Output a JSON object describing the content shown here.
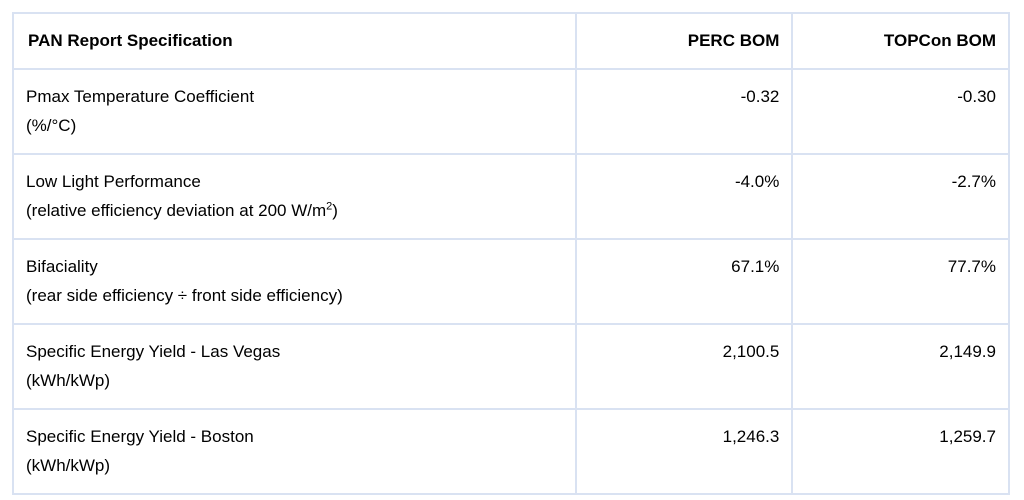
{
  "page": {
    "background_color": "#ffffff",
    "border_color": "#d9e2f2",
    "text_color": "#000000"
  },
  "table": {
    "header": {
      "spec": "PAN Report Specification",
      "perc": "PERC BOM",
      "topcon": "TOPCon BOM"
    },
    "rows": [
      {
        "name": "Pmax Temperature Coefficient",
        "detail_pre": "(%/°C)",
        "detail_sup": "",
        "detail_post": "",
        "perc": "-0.32",
        "topcon": "-0.30"
      },
      {
        "name": "Low Light Performance",
        "detail_pre": "(relative efficiency deviation at 200 W/m",
        "detail_sup": "2",
        "detail_post": ")",
        "perc": "-4.0%",
        "topcon": "-2.7%"
      },
      {
        "name": "Bifaciality",
        "detail_pre": "(rear side efficiency ÷ front side efficiency)",
        "detail_sup": "",
        "detail_post": "",
        "perc": "67.1%",
        "topcon": "77.7%"
      },
      {
        "name": "Specific Energy Yield - Las Vegas",
        "detail_pre": "(kWh/kWp)",
        "detail_sup": "",
        "detail_post": "",
        "perc": "2,100.5",
        "topcon": "2,149.9"
      },
      {
        "name": "Specific Energy Yield - Boston",
        "detail_pre": "(kWh/kWp)",
        "detail_sup": "",
        "detail_post": "",
        "perc": "1,246.3",
        "topcon": "1,259.7"
      }
    ]
  },
  "chart_data": {
    "type": "table",
    "title": "PAN Report Specification",
    "columns": [
      "PAN Report Specification",
      "PERC BOM",
      "TOPCon BOM"
    ],
    "rows": [
      {
        "spec": "Pmax Temperature Coefficient (%/°C)",
        "perc_bom": -0.32,
        "topcon_bom": -0.3
      },
      {
        "spec": "Low Light Performance (relative efficiency deviation at 200 W/m²)",
        "perc_bom": "-4.0%",
        "topcon_bom": "-2.7%"
      },
      {
        "spec": "Bifaciality (rear side efficiency ÷ front side efficiency)",
        "perc_bom": "67.1%",
        "topcon_bom": "77.7%"
      },
      {
        "spec": "Specific Energy Yield - Las Vegas (kWh/kWp)",
        "perc_bom": 2100.5,
        "topcon_bom": 2149.9
      },
      {
        "spec": "Specific Energy Yield - Boston (kWh/kWp)",
        "perc_bom": 1246.3,
        "topcon_bom": 1259.7
      }
    ]
  }
}
